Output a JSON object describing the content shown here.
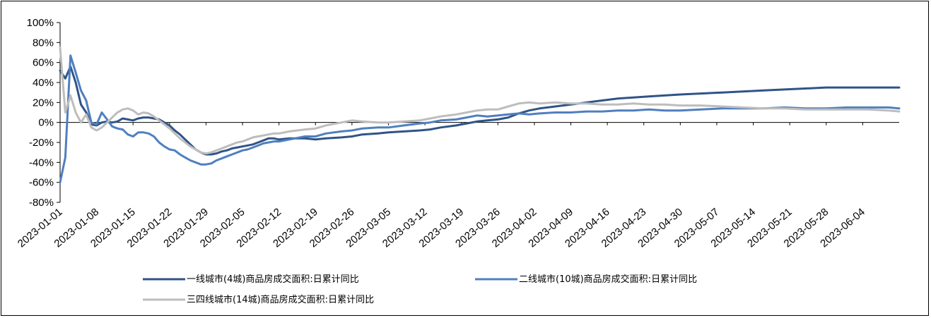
{
  "chart_data": {
    "type": "line",
    "title": "",
    "xlabel": "",
    "ylabel": "",
    "x_start": "2023-01-01",
    "x_end": "2023-06-11",
    "x_ticks": [
      "2023-01-01",
      "2023-01-08",
      "2023-01-15",
      "2023-01-22",
      "2023-01-29",
      "2023-02-05",
      "2023-02-12",
      "2023-02-19",
      "2023-02-26",
      "2023-03-05",
      "2023-03-12",
      "2023-03-19",
      "2023-03-26",
      "2023-04-02",
      "2023-04-09",
      "2023-04-16",
      "2023-04-23",
      "2023-04-30",
      "2023-05-07",
      "2023-05-14",
      "2023-05-21",
      "2023-05-28",
      "2023-06-04"
    ],
    "y_ticks": [
      "100%",
      "80%",
      "60%",
      "40%",
      "20%",
      "0%",
      "-20%",
      "-40%",
      "-60%",
      "-80%"
    ],
    "ylim": [
      -80,
      100
    ],
    "y_unit": "%",
    "grid": false,
    "legend_position": "bottom",
    "series": [
      {
        "name": "一线城市(4城)商品房成交面积:日累计同比",
        "color": "#2f5487",
        "points": [
          [
            "2023-01-01",
            52
          ],
          [
            "2023-01-02",
            44
          ],
          [
            "2023-01-03",
            56
          ],
          [
            "2023-01-04",
            40
          ],
          [
            "2023-01-05",
            18
          ],
          [
            "2023-01-06",
            10
          ],
          [
            "2023-01-07",
            -2
          ],
          [
            "2023-01-08",
            -3
          ],
          [
            "2023-01-09",
            0
          ],
          [
            "2023-01-10",
            1
          ],
          [
            "2023-01-11",
            0
          ],
          [
            "2023-01-12",
            1
          ],
          [
            "2023-01-13",
            4
          ],
          [
            "2023-01-14",
            3
          ],
          [
            "2023-01-15",
            2
          ],
          [
            "2023-01-16",
            4
          ],
          [
            "2023-01-17",
            5
          ],
          [
            "2023-01-18",
            5
          ],
          [
            "2023-01-19",
            4
          ],
          [
            "2023-01-20",
            3
          ],
          [
            "2023-01-21",
            0
          ],
          [
            "2023-01-22",
            -3
          ],
          [
            "2023-01-23",
            -8
          ],
          [
            "2023-01-24",
            -12
          ],
          [
            "2023-01-25",
            -17
          ],
          [
            "2023-01-26",
            -22
          ],
          [
            "2023-01-27",
            -27
          ],
          [
            "2023-01-28",
            -30
          ],
          [
            "2023-01-29",
            -32
          ],
          [
            "2023-01-30",
            -32
          ],
          [
            "2023-01-31",
            -31
          ],
          [
            "2023-02-01",
            -29
          ],
          [
            "2023-02-02",
            -28
          ],
          [
            "2023-02-03",
            -26
          ],
          [
            "2023-02-04",
            -25
          ],
          [
            "2023-02-05",
            -24
          ],
          [
            "2023-02-06",
            -23
          ],
          [
            "2023-02-07",
            -22
          ],
          [
            "2023-02-08",
            -20
          ],
          [
            "2023-02-09",
            -18
          ],
          [
            "2023-02-10",
            -16
          ],
          [
            "2023-02-11",
            -16
          ],
          [
            "2023-02-12",
            -17
          ],
          [
            "2023-02-14",
            -16
          ],
          [
            "2023-02-17",
            -16
          ],
          [
            "2023-02-19",
            -17
          ],
          [
            "2023-02-21",
            -16
          ],
          [
            "2023-02-24",
            -15
          ],
          [
            "2023-02-26",
            -14
          ],
          [
            "2023-02-28",
            -12
          ],
          [
            "2023-03-03",
            -11
          ],
          [
            "2023-03-05",
            -10
          ],
          [
            "2023-03-08",
            -9
          ],
          [
            "2023-03-11",
            -8
          ],
          [
            "2023-03-13",
            -7
          ],
          [
            "2023-03-15",
            -5
          ],
          [
            "2023-03-18",
            -3
          ],
          [
            "2023-03-20",
            -1
          ],
          [
            "2023-03-22",
            1
          ],
          [
            "2023-03-24",
            2
          ],
          [
            "2023-03-26",
            3
          ],
          [
            "2023-03-28",
            5
          ],
          [
            "2023-03-30",
            9
          ],
          [
            "2023-04-01",
            12
          ],
          [
            "2023-04-03",
            14
          ],
          [
            "2023-04-06",
            16
          ],
          [
            "2023-04-09",
            18
          ],
          [
            "2023-04-12",
            20
          ],
          [
            "2023-04-15",
            22
          ],
          [
            "2023-04-18",
            24
          ],
          [
            "2023-04-21",
            25
          ],
          [
            "2023-04-24",
            26
          ],
          [
            "2023-04-27",
            27
          ],
          [
            "2023-04-30",
            28
          ],
          [
            "2023-05-04",
            29
          ],
          [
            "2023-05-08",
            30
          ],
          [
            "2023-05-12",
            31
          ],
          [
            "2023-05-16",
            32
          ],
          [
            "2023-05-20",
            33
          ],
          [
            "2023-05-24",
            34
          ],
          [
            "2023-05-28",
            35
          ],
          [
            "2023-06-01",
            35
          ],
          [
            "2023-06-05",
            35
          ],
          [
            "2023-06-09",
            35
          ],
          [
            "2023-06-11",
            35
          ]
        ]
      },
      {
        "name": "二线城市(10城)商品房成交面积:日累计同比",
        "color": "#4f7fbf",
        "points": [
          [
            "2023-01-01",
            -60
          ],
          [
            "2023-01-02",
            -35
          ],
          [
            "2023-01-03",
            67
          ],
          [
            "2023-01-04",
            50
          ],
          [
            "2023-01-05",
            32
          ],
          [
            "2023-01-06",
            22
          ],
          [
            "2023-01-07",
            0
          ],
          [
            "2023-01-08",
            -2
          ],
          [
            "2023-01-09",
            10
          ],
          [
            "2023-01-10",
            3
          ],
          [
            "2023-01-11",
            -4
          ],
          [
            "2023-01-12",
            -6
          ],
          [
            "2023-01-13",
            -7
          ],
          [
            "2023-01-14",
            -12
          ],
          [
            "2023-01-15",
            -14
          ],
          [
            "2023-01-16",
            -10
          ],
          [
            "2023-01-17",
            -10
          ],
          [
            "2023-01-18",
            -11
          ],
          [
            "2023-01-19",
            -14
          ],
          [
            "2023-01-20",
            -20
          ],
          [
            "2023-01-21",
            -24
          ],
          [
            "2023-01-22",
            -27
          ],
          [
            "2023-01-23",
            -28
          ],
          [
            "2023-01-24",
            -32
          ],
          [
            "2023-01-25",
            -35
          ],
          [
            "2023-01-26",
            -38
          ],
          [
            "2023-01-27",
            -40
          ],
          [
            "2023-01-28",
            -42
          ],
          [
            "2023-01-29",
            -42
          ],
          [
            "2023-01-30",
            -41
          ],
          [
            "2023-01-31",
            -38
          ],
          [
            "2023-02-01",
            -36
          ],
          [
            "2023-02-02",
            -34
          ],
          [
            "2023-02-03",
            -32
          ],
          [
            "2023-02-04",
            -30
          ],
          [
            "2023-02-05",
            -28
          ],
          [
            "2023-02-06",
            -27
          ],
          [
            "2023-02-07",
            -25
          ],
          [
            "2023-02-08",
            -23
          ],
          [
            "2023-02-09",
            -21
          ],
          [
            "2023-02-10",
            -20
          ],
          [
            "2023-02-11",
            -19
          ],
          [
            "2023-02-12",
            -19
          ],
          [
            "2023-02-14",
            -17
          ],
          [
            "2023-02-17",
            -14
          ],
          [
            "2023-02-19",
            -14
          ],
          [
            "2023-02-21",
            -11
          ],
          [
            "2023-02-24",
            -9
          ],
          [
            "2023-02-26",
            -8
          ],
          [
            "2023-02-28",
            -6
          ],
          [
            "2023-03-03",
            -5
          ],
          [
            "2023-03-05",
            -5
          ],
          [
            "2023-03-08",
            -3
          ],
          [
            "2023-03-11",
            -1
          ],
          [
            "2023-03-13",
            0
          ],
          [
            "2023-03-15",
            2
          ],
          [
            "2023-03-18",
            3
          ],
          [
            "2023-03-20",
            5
          ],
          [
            "2023-03-22",
            7
          ],
          [
            "2023-03-24",
            6
          ],
          [
            "2023-03-26",
            7
          ],
          [
            "2023-03-28",
            8
          ],
          [
            "2023-03-30",
            9
          ],
          [
            "2023-04-01",
            8
          ],
          [
            "2023-04-03",
            9
          ],
          [
            "2023-04-06",
            10
          ],
          [
            "2023-04-09",
            10
          ],
          [
            "2023-04-12",
            11
          ],
          [
            "2023-04-15",
            11
          ],
          [
            "2023-04-18",
            12
          ],
          [
            "2023-04-21",
            12
          ],
          [
            "2023-04-24",
            13
          ],
          [
            "2023-04-27",
            12
          ],
          [
            "2023-04-30",
            12
          ],
          [
            "2023-05-04",
            13
          ],
          [
            "2023-05-08",
            14
          ],
          [
            "2023-05-12",
            14
          ],
          [
            "2023-05-16",
            14
          ],
          [
            "2023-05-20",
            15
          ],
          [
            "2023-05-24",
            14
          ],
          [
            "2023-05-28",
            14
          ],
          [
            "2023-06-01",
            15
          ],
          [
            "2023-06-05",
            15
          ],
          [
            "2023-06-09",
            15
          ],
          [
            "2023-06-11",
            14
          ]
        ]
      },
      {
        "name": "三四线城市(14城)商品房成交面积:日累计同比",
        "color": "#bdbdbd",
        "points": [
          [
            "2023-01-01",
            75
          ],
          [
            "2023-01-02",
            10
          ],
          [
            "2023-01-03",
            27
          ],
          [
            "2023-01-04",
            10
          ],
          [
            "2023-01-05",
            0
          ],
          [
            "2023-01-06",
            8
          ],
          [
            "2023-01-07",
            -5
          ],
          [
            "2023-01-08",
            -8
          ],
          [
            "2023-01-09",
            -5
          ],
          [
            "2023-01-10",
            0
          ],
          [
            "2023-01-11",
            5
          ],
          [
            "2023-01-12",
            10
          ],
          [
            "2023-01-13",
            13
          ],
          [
            "2023-01-14",
            14
          ],
          [
            "2023-01-15",
            12
          ],
          [
            "2023-01-16",
            8
          ],
          [
            "2023-01-17",
            10
          ],
          [
            "2023-01-18",
            9
          ],
          [
            "2023-01-19",
            6
          ],
          [
            "2023-01-20",
            2
          ],
          [
            "2023-01-21",
            -2
          ],
          [
            "2023-01-22",
            -6
          ],
          [
            "2023-01-23",
            -11
          ],
          [
            "2023-01-24",
            -16
          ],
          [
            "2023-01-25",
            -20
          ],
          [
            "2023-01-26",
            -24
          ],
          [
            "2023-01-27",
            -27
          ],
          [
            "2023-01-28",
            -30
          ],
          [
            "2023-01-29",
            -31
          ],
          [
            "2023-01-30",
            -30
          ],
          [
            "2023-01-31",
            -28
          ],
          [
            "2023-02-01",
            -26
          ],
          [
            "2023-02-02",
            -24
          ],
          [
            "2023-02-03",
            -22
          ],
          [
            "2023-02-04",
            -20
          ],
          [
            "2023-02-05",
            -19
          ],
          [
            "2023-02-06",
            -17
          ],
          [
            "2023-02-07",
            -15
          ],
          [
            "2023-02-08",
            -14
          ],
          [
            "2023-02-09",
            -13
          ],
          [
            "2023-02-10",
            -12
          ],
          [
            "2023-02-11",
            -11
          ],
          [
            "2023-02-12",
            -11
          ],
          [
            "2023-02-14",
            -9
          ],
          [
            "2023-02-17",
            -7
          ],
          [
            "2023-02-19",
            -6
          ],
          [
            "2023-02-21",
            -3
          ],
          [
            "2023-02-24",
            0
          ],
          [
            "2023-02-26",
            2
          ],
          [
            "2023-02-28",
            1
          ],
          [
            "2023-03-03",
            0
          ],
          [
            "2023-03-05",
            0
          ],
          [
            "2023-03-08",
            1
          ],
          [
            "2023-03-11",
            2
          ],
          [
            "2023-03-13",
            4
          ],
          [
            "2023-03-15",
            6
          ],
          [
            "2023-03-18",
            8
          ],
          [
            "2023-03-20",
            10
          ],
          [
            "2023-03-22",
            12
          ],
          [
            "2023-03-24",
            13
          ],
          [
            "2023-03-26",
            13
          ],
          [
            "2023-03-28",
            16
          ],
          [
            "2023-03-30",
            19
          ],
          [
            "2023-04-01",
            20
          ],
          [
            "2023-04-03",
            19
          ],
          [
            "2023-04-06",
            20
          ],
          [
            "2023-04-09",
            19
          ],
          [
            "2023-04-12",
            19
          ],
          [
            "2023-04-15",
            18
          ],
          [
            "2023-04-18",
            18
          ],
          [
            "2023-04-21",
            19
          ],
          [
            "2023-04-24",
            18
          ],
          [
            "2023-04-27",
            18
          ],
          [
            "2023-04-30",
            17
          ],
          [
            "2023-05-04",
            17
          ],
          [
            "2023-05-08",
            16
          ],
          [
            "2023-05-12",
            15
          ],
          [
            "2023-05-16",
            14
          ],
          [
            "2023-05-20",
            14
          ],
          [
            "2023-05-24",
            13
          ],
          [
            "2023-05-28",
            13
          ],
          [
            "2023-06-01",
            13
          ],
          [
            "2023-06-05",
            13
          ],
          [
            "2023-06-09",
            12
          ],
          [
            "2023-06-11",
            11
          ]
        ]
      }
    ]
  }
}
